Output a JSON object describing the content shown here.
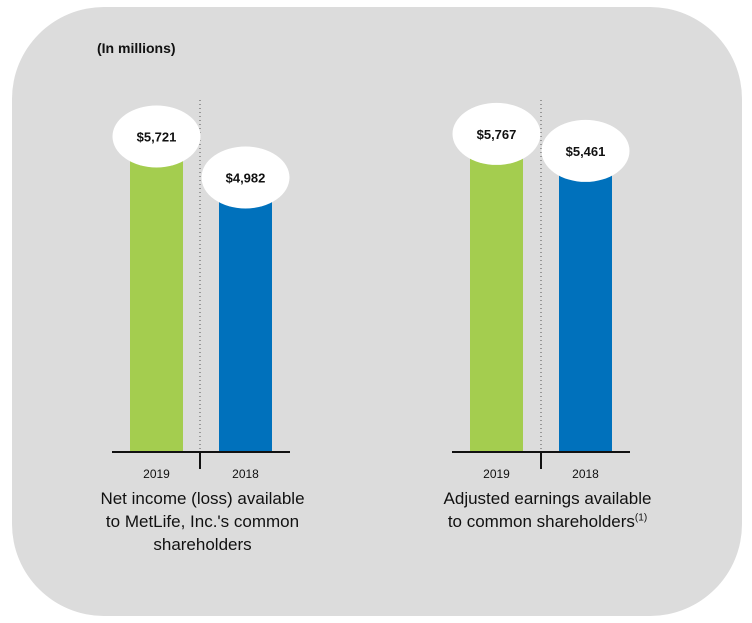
{
  "unit_label": "(In millions)",
  "chart_data": [
    {
      "type": "bar",
      "title": "Net income (loss) available to MetLife, Inc.'s common shareholders",
      "caption_lines": [
        "Net income (loss) available",
        "to MetLife, Inc.'s common",
        "shareholders"
      ],
      "categories": [
        "2019",
        "2018"
      ],
      "values": [
        5721,
        4982
      ],
      "data_labels": [
        "$5,721",
        "$4,982"
      ],
      "colors": [
        "#a4cd4f",
        "#0071bc"
      ]
    },
    {
      "type": "bar",
      "title": "Adjusted earnings available to common shareholders(1)",
      "caption_lines": [
        "Adjusted earnings available",
        "to common shareholders"
      ],
      "footnote": "(1)",
      "categories": [
        "2019",
        "2018"
      ],
      "values": [
        5767,
        5461
      ],
      "data_labels": [
        "$5,767",
        "$5,461"
      ],
      "colors": [
        "#a4cd4f",
        "#0071bc"
      ]
    }
  ]
}
